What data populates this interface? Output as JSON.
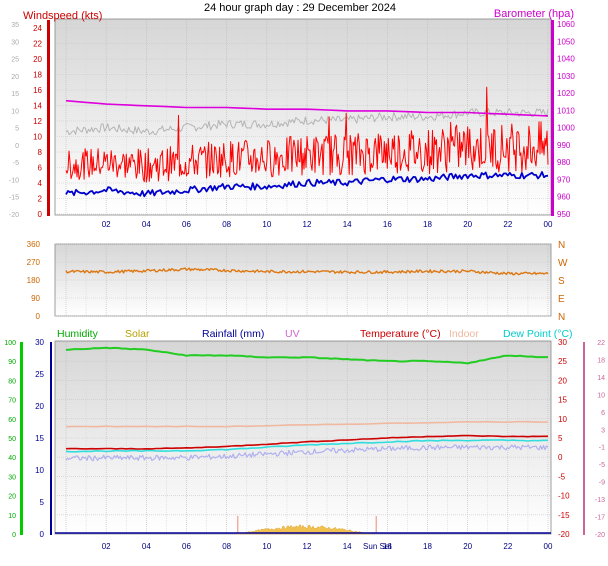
{
  "title": "24 hour graph day : 29 December 2024",
  "x_ticks": [
    "02",
    "04",
    "06",
    "08",
    "10",
    "12",
    "14",
    "16",
    "18",
    "20",
    "22",
    "00"
  ],
  "x_ticks_bottom": [
    "02",
    "04",
    "06",
    "08",
    "10",
    "12",
    "14",
    "Sun Set",
    "16",
    "18",
    "20",
    "22",
    "00"
  ],
  "panels": {
    "wind": {
      "legend_left": "Windspeed (kts)",
      "legend_right": "Barometer (hpa)",
      "axis_outer": [
        "-20",
        "-15",
        "-10",
        "-5",
        "0",
        "5",
        "10",
        "15",
        "20",
        "25",
        "30",
        "35"
      ],
      "axis_speed": [
        "0",
        "2",
        "4",
        "6",
        "8",
        "10",
        "12",
        "14",
        "16",
        "18",
        "20",
        "22",
        "24"
      ],
      "axis_baro": [
        "950",
        "960",
        "970",
        "980",
        "990",
        "1000",
        "1010",
        "1020",
        "1030",
        "1040",
        "1050",
        "1060"
      ]
    },
    "direction": {
      "axis_left": [
        "0",
        "90",
        "180",
        "270",
        "360"
      ],
      "axis_right": [
        "N",
        "E",
        "S",
        "W",
        "N"
      ]
    },
    "temp": {
      "legend": [
        {
          "label": "Humidity",
          "color": "#00aa00"
        },
        {
          "label": "Solar",
          "color": "#b8a000"
        },
        {
          "label": "Rainfall (mm)",
          "color": "#000099"
        },
        {
          "label": "UV",
          "color": "#cc66cc"
        },
        {
          "label": "Temperature (°C)",
          "color": "#cc0000"
        },
        {
          "label": "Indoor",
          "color": "#f0b8a0"
        },
        {
          "label": "Dew Point (°C)",
          "color": "#00cccc"
        }
      ],
      "axis_humidity": [
        "0",
        "10",
        "20",
        "30",
        "40",
        "50",
        "60",
        "70",
        "80",
        "90",
        "100"
      ],
      "axis_rain": [
        "0",
        "5",
        "10",
        "15",
        "20",
        "25",
        "30"
      ],
      "axis_temp_inner": [
        "-20",
        "-15",
        "-10",
        "-5",
        "0",
        "5",
        "10",
        "15",
        "20",
        "25",
        "30"
      ],
      "axis_temp_outer": [
        "-20",
        "-17",
        "-13",
        "-9",
        "-5",
        "-1",
        "3",
        "6",
        "10",
        "14",
        "18",
        "22"
      ]
    }
  },
  "colors": {
    "wind_gust": "#ff0000",
    "wind_avg": "#0000cc",
    "barometer": "#dd00dd",
    "grey_trace": "#b4b4b4",
    "direction": "#dd7711",
    "humidity": "#22cc22",
    "temperature": "#cc0000",
    "indoor": "#f0b8a0",
    "dew_point": "#33dddd",
    "lavender": "#b0b0f0",
    "solar": "#f0c050",
    "rainfall": "#000099",
    "uv_marker": "#f0b0a0"
  },
  "chart_data": [
    {
      "type": "line",
      "name": "wind-barometer",
      "x": [
        0,
        2,
        4,
        6,
        8,
        10,
        12,
        14,
        16,
        18,
        20,
        22,
        24
      ],
      "ylim_speed": [
        0,
        25
      ],
      "ylim_baro": [
        950,
        1060
      ],
      "series": [
        {
          "name": "Windspeed (kts)",
          "axis": "speed",
          "values": [
            6.5,
            7.0,
            6.5,
            7.0,
            7.5,
            7.5,
            8.0,
            8.0,
            8.5,
            8.5,
            9.0,
            9.0,
            9.0
          ]
        },
        {
          "name": "Barometer (hpa)",
          "axis": "baro",
          "values": [
            1017,
            1015,
            1014,
            1013,
            1013,
            1012,
            1012,
            1011,
            1011,
            1010,
            1010,
            1009,
            1008
          ]
        }
      ]
    },
    {
      "type": "line",
      "name": "wind-direction",
      "x": [
        0,
        2,
        4,
        6,
        8,
        10,
        12,
        14,
        16,
        18,
        20,
        22,
        24
      ],
      "ylim": [
        0,
        360
      ],
      "series": [
        {
          "values": [
            222,
            220,
            226,
            234,
            228,
            222,
            222,
            220,
            220,
            224,
            224,
            212,
            212
          ]
        }
      ]
    },
    {
      "type": "line",
      "name": "temperature-humidity",
      "x": [
        0,
        2,
        4,
        6,
        8,
        10,
        12,
        14,
        16,
        18,
        20,
        22,
        24
      ],
      "ylim_humidity": [
        0,
        100
      ],
      "ylim_temp": [
        -20,
        30
      ],
      "series": [
        {
          "name": "Humidity",
          "axis": "humidity",
          "values": [
            96,
            97,
            96,
            93,
            93,
            92,
            92,
            91,
            90,
            90,
            89,
            93,
            92
          ]
        },
        {
          "name": "Temperature (°C)",
          "axis": "temp",
          "values": [
            2.2,
            2.2,
            2.2,
            2.4,
            2.8,
            3.4,
            4.0,
            4.5,
            5.0,
            5.4,
            5.6,
            5.4,
            5.4
          ]
        },
        {
          "name": "Indoor",
          "axis": "temp",
          "values": [
            8.0,
            8.0,
            8.0,
            8.0,
            8.0,
            8.2,
            8.4,
            8.6,
            8.8,
            9.0,
            9.2,
            9.2,
            9.2
          ]
        },
        {
          "name": "Dew Point (°C)",
          "axis": "temp",
          "values": [
            1.5,
            1.6,
            1.6,
            1.7,
            2.0,
            2.6,
            3.2,
            3.6,
            4.0,
            4.3,
            4.4,
            4.4,
            4.3
          ]
        },
        {
          "name": "Solar",
          "axis": "temp",
          "values": [
            -20,
            -20,
            -20,
            -20,
            -20,
            -19.6,
            -18.0,
            -19.2,
            -20,
            -20,
            -20,
            -20,
            -20
          ]
        }
      ]
    }
  ]
}
